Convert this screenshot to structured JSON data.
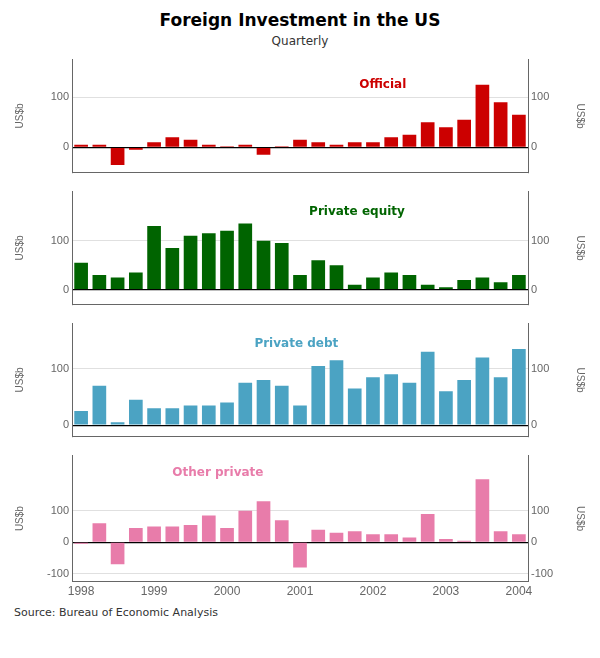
{
  "chart_data": [
    {
      "type": "bar",
      "title": "Foreign Investment in the US",
      "subtitle": "Quarterly",
      "categories": [
        null,
        null,
        null,
        null,
        null,
        null,
        null,
        null,
        null,
        null,
        null,
        null,
        null,
        null,
        null,
        null,
        null,
        null,
        null,
        null,
        null,
        null,
        null,
        null,
        null
      ],
      "series": [
        {
          "name": "Official",
          "color": "#cc0000",
          "values": [
            5,
            5,
            -35,
            -5,
            10,
            20,
            15,
            5,
            2,
            5,
            -15,
            2,
            15,
            10,
            5,
            10,
            10,
            20,
            25,
            50,
            40,
            55,
            125,
            90,
            65
          ]
        }
      ],
      "ylabel": "US$b",
      "y2label": "US$b",
      "ylim": [
        -50,
        175
      ],
      "yticks": [
        0,
        100
      ],
      "y2lim": [
        -50,
        175
      ],
      "y2ticks": [
        0,
        100
      ],
      "grid": true
    },
    {
      "type": "bar",
      "categories": [
        null,
        null,
        null,
        null,
        null,
        null,
        null,
        null,
        null,
        null,
        null,
        null,
        null,
        null,
        null,
        null,
        null,
        null,
        null,
        null,
        null,
        null,
        null,
        null,
        null
      ],
      "series": [
        {
          "name": "Private equity",
          "color": "#006400",
          "values": [
            55,
            30,
            25,
            35,
            130,
            85,
            110,
            115,
            120,
            135,
            100,
            95,
            30,
            60,
            50,
            10,
            25,
            35,
            30,
            10,
            5,
            20,
            25,
            15,
            30
          ]
        }
      ],
      "ylabel": "US$b",
      "y2label": "US$b",
      "ylim": [
        -30,
        200
      ],
      "yticks": [
        0,
        100
      ],
      "y2lim": [
        -30,
        200
      ],
      "y2ticks": [
        0,
        100
      ],
      "grid": true
    },
    {
      "type": "bar",
      "categories": [
        null,
        null,
        null,
        null,
        null,
        null,
        null,
        null,
        null,
        null,
        null,
        null,
        null,
        null,
        null,
        null,
        null,
        null,
        null,
        null,
        null,
        null,
        null,
        null,
        null
      ],
      "series": [
        {
          "name": "Private debt",
          "color": "#4ba3c3",
          "values": [
            25,
            70,
            5,
            45,
            30,
            30,
            35,
            35,
            40,
            75,
            80,
            70,
            35,
            105,
            115,
            65,
            85,
            90,
            75,
            130,
            60,
            80,
            120,
            85,
            135
          ]
        }
      ],
      "ylabel": "US$b",
      "y2label": "US$b",
      "ylim": [
        -20,
        180
      ],
      "yticks": [
        0,
        100
      ],
      "y2lim": [
        -20,
        180
      ],
      "y2ticks": [
        0,
        100
      ],
      "grid": true
    },
    {
      "type": "bar",
      "source": "Source: Bureau of Economic Analysis",
      "categories": [
        "1998",
        null,
        null,
        null,
        "1999",
        null,
        null,
        null,
        "2000",
        null,
        null,
        null,
        "2001",
        null,
        null,
        null,
        "2002",
        null,
        null,
        null,
        "2003",
        null,
        null,
        null,
        "2004"
      ],
      "series": [
        {
          "name": "Other private",
          "color": "#e87caa",
          "values": [
            -5,
            60,
            -70,
            45,
            50,
            50,
            55,
            85,
            45,
            100,
            130,
            70,
            -80,
            40,
            30,
            35,
            25,
            25,
            15,
            90,
            10,
            5,
            200,
            35,
            25
          ]
        }
      ],
      "ylabel": "US$b",
      "y2label": "US$b",
      "ylim": [
        -125,
        275
      ],
      "yticks": [
        -100,
        0,
        100
      ],
      "y2lim": [
        -125,
        275
      ],
      "y2ticks": [
        -100,
        0,
        100
      ],
      "grid": true
    }
  ]
}
